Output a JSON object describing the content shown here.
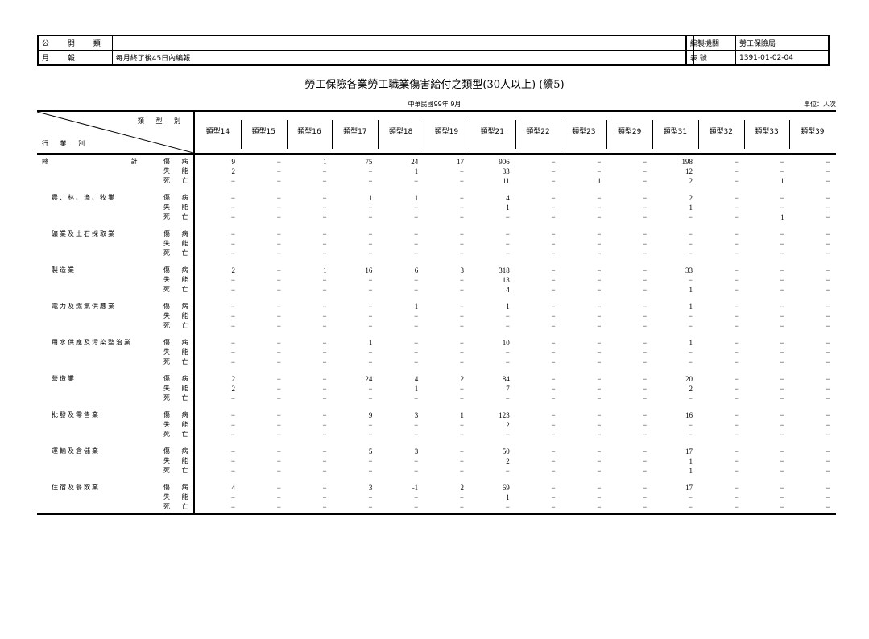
{
  "header": {
    "left": {
      "row1_label": "公 開 類",
      "row2_label": "月 報",
      "row2_value": "每月終了後45日內編報"
    },
    "right": {
      "row1_label": "編製機關",
      "row1_value": "勞工保險局",
      "row2_label": "表 號",
      "row2_value": "1391-01-02-04"
    }
  },
  "title": "勞工保險各業勞工職業傷害給付之類型(30人以上) (續5)",
  "period": "中華民國99年 9月",
  "unit": "單位：人次",
  "table": {
    "corner_type_label": "類 型 別",
    "corner_industry_label": "行 業 別",
    "columns": [
      "類型14",
      "類型15",
      "類型16",
      "類型17",
      "類型18",
      "類型19",
      "類型21",
      "類型22",
      "類型23",
      "類型29",
      "類型31",
      "類型32",
      "類型33",
      "類型39"
    ],
    "row_types": [
      "傷 病",
      "失 能",
      "死 亡"
    ],
    "groups": [
      {
        "industry": "總 計",
        "rows": [
          [
            "9",
            "−",
            "1",
            "75",
            "24",
            "17",
            "906",
            "−",
            "−",
            "−",
            "198",
            "−",
            "−",
            "−"
          ],
          [
            "2",
            "−",
            "−",
            "−",
            "1",
            "−",
            "33",
            "−",
            "−",
            "−",
            "12",
            "−",
            "−",
            "−"
          ],
          [
            "−",
            "−",
            "−",
            "−",
            "−",
            "−",
            "11",
            "−",
            "1",
            "−",
            "2",
            "−",
            "1",
            "−"
          ]
        ]
      },
      {
        "industry": "農、林、漁、牧業",
        "rows": [
          [
            "−",
            "−",
            "−",
            "1",
            "1",
            "−",
            "4",
            "−",
            "−",
            "−",
            "2",
            "−",
            "−",
            "−"
          ],
          [
            "−",
            "−",
            "−",
            "−",
            "−",
            "−",
            "1",
            "−",
            "−",
            "−",
            "1",
            "−",
            "−",
            "−"
          ],
          [
            "−",
            "−",
            "−",
            "−",
            "−",
            "−",
            "−",
            "−",
            "−",
            "−",
            "−",
            "−",
            "1",
            "−"
          ]
        ]
      },
      {
        "industry": "礦業及土石採取業",
        "rows": [
          [
            "−",
            "−",
            "−",
            "−",
            "−",
            "−",
            "−",
            "−",
            "−",
            "−",
            "−",
            "−",
            "−",
            "−"
          ],
          [
            "−",
            "−",
            "−",
            "−",
            "−",
            "−",
            "−",
            "−",
            "−",
            "−",
            "−",
            "−",
            "−",
            "−"
          ],
          [
            "−",
            "−",
            "−",
            "−",
            "−",
            "−",
            "−",
            "−",
            "−",
            "−",
            "−",
            "−",
            "−",
            "−"
          ]
        ]
      },
      {
        "industry": "製造業",
        "rows": [
          [
            "2",
            "−",
            "1",
            "16",
            "6",
            "3",
            "318",
            "−",
            "−",
            "−",
            "33",
            "−",
            "−",
            "−"
          ],
          [
            "−",
            "−",
            "−",
            "−",
            "−",
            "−",
            "13",
            "−",
            "−",
            "−",
            "−",
            "−",
            "−",
            "−"
          ],
          [
            "−",
            "−",
            "−",
            "−",
            "−",
            "−",
            "4",
            "−",
            "−",
            "−",
            "1",
            "−",
            "−",
            "−"
          ]
        ]
      },
      {
        "industry": "電力及燃氣供應業",
        "rows": [
          [
            "−",
            "−",
            "−",
            "−",
            "1",
            "−",
            "1",
            "−",
            "−",
            "−",
            "1",
            "−",
            "−",
            "−"
          ],
          [
            "−",
            "−",
            "−",
            "−",
            "−",
            "−",
            "−",
            "−",
            "−",
            "−",
            "−",
            "−",
            "−",
            "−"
          ],
          [
            "−",
            "−",
            "−",
            "−",
            "−",
            "−",
            "−",
            "−",
            "−",
            "−",
            "−",
            "−",
            "−",
            "−"
          ]
        ]
      },
      {
        "industry": "用水供應及污染整治業",
        "rows": [
          [
            "−",
            "−",
            "−",
            "1",
            "−",
            "−",
            "10",
            "−",
            "−",
            "−",
            "1",
            "−",
            "−",
            "−"
          ],
          [
            "−",
            "−",
            "−",
            "−",
            "−",
            "−",
            "−",
            "−",
            "−",
            "−",
            "−",
            "−",
            "−",
            "−"
          ],
          [
            "−",
            "−",
            "−",
            "−",
            "−",
            "−",
            "−",
            "−",
            "−",
            "−",
            "−",
            "−",
            "−",
            "−"
          ]
        ]
      },
      {
        "industry": "營造業",
        "rows": [
          [
            "2",
            "−",
            "−",
            "24",
            "4",
            "2",
            "84",
            "−",
            "−",
            "−",
            "20",
            "−",
            "−",
            "−"
          ],
          [
            "2",
            "−",
            "−",
            "−",
            "1",
            "−",
            "7",
            "−",
            "−",
            "−",
            "2",
            "−",
            "−",
            "−"
          ],
          [
            "−",
            "−",
            "−",
            "−",
            "−",
            "−",
            "−",
            "−",
            "−",
            "−",
            "−",
            "−",
            "−",
            "−"
          ]
        ]
      },
      {
        "industry": "批發及零售業",
        "rows": [
          [
            "−",
            "−",
            "−",
            "9",
            "3",
            "1",
            "123",
            "−",
            "−",
            "−",
            "16",
            "−",
            "−",
            "−"
          ],
          [
            "−",
            "−",
            "−",
            "−",
            "−",
            "−",
            "2",
            "−",
            "−",
            "−",
            "−",
            "−",
            "−",
            "−"
          ],
          [
            "−",
            "−",
            "−",
            "−",
            "−",
            "−",
            "−",
            "−",
            "−",
            "−",
            "−",
            "−",
            "−",
            "−"
          ]
        ]
      },
      {
        "industry": "運輸及倉儲業",
        "rows": [
          [
            "−",
            "−",
            "−",
            "5",
            "3",
            "−",
            "50",
            "−",
            "−",
            "−",
            "17",
            "−",
            "−",
            "−"
          ],
          [
            "−",
            "−",
            "−",
            "−",
            "−",
            "−",
            "2",
            "−",
            "−",
            "−",
            "1",
            "−",
            "−",
            "−"
          ],
          [
            "−",
            "−",
            "−",
            "−",
            "−",
            "−",
            "−",
            "−",
            "−",
            "−",
            "1",
            "−",
            "−",
            "−"
          ]
        ]
      },
      {
        "industry": "住宿及餐飲業",
        "rows": [
          [
            "4",
            "−",
            "−",
            "3",
            "-1",
            "2",
            "69",
            "−",
            "−",
            "−",
            "17",
            "−",
            "−",
            "−"
          ],
          [
            "−",
            "−",
            "−",
            "−",
            "−",
            "−",
            "1",
            "−",
            "−",
            "−",
            "−",
            "−",
            "−",
            "−"
          ],
          [
            "−",
            "−",
            "−",
            "−",
            "−",
            "−",
            "−",
            "−",
            "−",
            "−",
            "−",
            "−",
            "−",
            "−"
          ]
        ]
      }
    ]
  }
}
